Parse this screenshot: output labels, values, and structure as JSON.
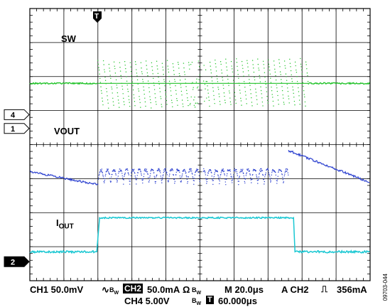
{
  "trigger_marker": "T",
  "channel_markers": {
    "ch4": "4",
    "ch1": "1",
    "ch2": "2"
  },
  "trace_labels": {
    "sw": "SW",
    "vout": "VOUT",
    "iout_main": "I",
    "iout_sub": "OUT"
  },
  "status": {
    "ch1_scale": "CH1 50.0mV",
    "ch2_label": "CH2",
    "ch2_scale": "50.0mA",
    "ch2_unit": "Ω",
    "bw": "B",
    "bw_sub": "W",
    "timebase": "M 20.0μs",
    "trigger_setting": "A CH2",
    "trigger_level": "356mA",
    "ch4_scale": "CH4 5.00V",
    "trigger_pos_icon": "T",
    "trigger_pos": "60.000μs"
  },
  "figure_id": "09703-044",
  "colors": {
    "sw_trace": "#22c32a",
    "vout_trace": "#2a3fcf",
    "iout_trace": "#19c7d2",
    "grid": "#000000",
    "background": "#ffffff"
  },
  "chart_data": {
    "type": "line",
    "title": "",
    "divisions": {
      "x": 10,
      "y": 8
    },
    "series": [
      {
        "name": "SW",
        "description_free": true,
        "level_div": 5.8,
        "burst_start_div": 2.0,
        "burst_end_div": 8.2,
        "amplitude_div": 0.7,
        "dense_segment_div": [
          4.7,
          5.2
        ]
      },
      {
        "name": "VOUT",
        "level_start_div": 3.2,
        "level_end_div": 2.95,
        "burst_start_div": 2.0,
        "burst_end_div": 7.6,
        "ramp_end_div": 10.0
      },
      {
        "name": "IOUT",
        "low_div": 0.85,
        "high_div": 1.85,
        "step_up_div": 2.05,
        "step_down_div": 7.75
      }
    ]
  }
}
